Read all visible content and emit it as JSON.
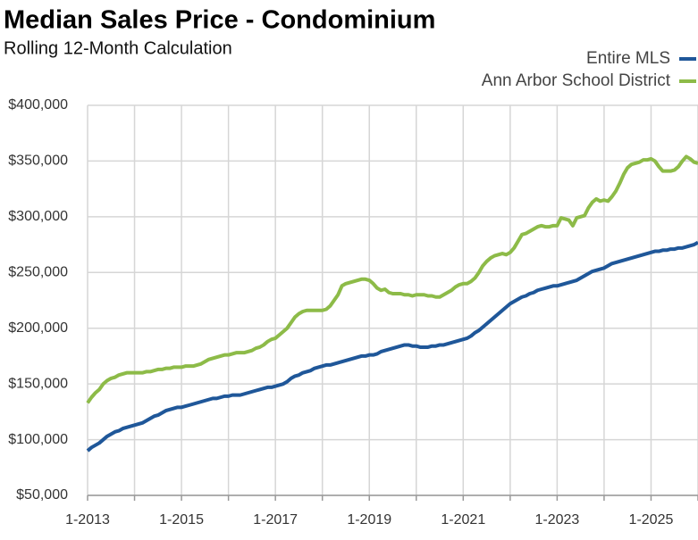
{
  "chart_data": {
    "type": "line",
    "title": "Median Sales Price - Condominium",
    "subtitle": "Rolling 12-Month Calculation",
    "categories": [
      "1-2013",
      null,
      null,
      null,
      null,
      null,
      null,
      null,
      null,
      null,
      null,
      null,
      null,
      null,
      null,
      null,
      null,
      null,
      null,
      null,
      null,
      null,
      null,
      null,
      "1-2015",
      null,
      null,
      null,
      null,
      null,
      null,
      null,
      null,
      null,
      null,
      null,
      null,
      null,
      null,
      null,
      null,
      null,
      null,
      null,
      null,
      null,
      null,
      null,
      "1-2017",
      null,
      null,
      null,
      null,
      null,
      null,
      null,
      null,
      null,
      null,
      null,
      null,
      null,
      null,
      null,
      null,
      null,
      null,
      null,
      null,
      null,
      null,
      null,
      "1-2019",
      null,
      null,
      null,
      null,
      null,
      null,
      null,
      null,
      null,
      null,
      null,
      null,
      null,
      null,
      null,
      null,
      null,
      null,
      null,
      null,
      null,
      null,
      null,
      "1-2021",
      null,
      null,
      null,
      null,
      null,
      null,
      null,
      null,
      null,
      null,
      null,
      null,
      null,
      null,
      null,
      null,
      null,
      null,
      null,
      null,
      null,
      null,
      null,
      "1-2023",
      null,
      null,
      null,
      null,
      null,
      null,
      null,
      null,
      null,
      null,
      null,
      null,
      null,
      null,
      null,
      null,
      null,
      null,
      null,
      null,
      null,
      null,
      null,
      "1-2025",
      null,
      null,
      null,
      null,
      null,
      null,
      null,
      null,
      null,
      null,
      null,
      null
    ],
    "series": [
      {
        "name": "Entire MLS",
        "color": "#1f5799",
        "values": [
          90000,
          93000,
          95000,
          97000,
          100000,
          103000,
          105000,
          107000,
          108000,
          110000,
          111000,
          112000,
          113000,
          114000,
          115000,
          117000,
          119000,
          121000,
          122000,
          124000,
          126000,
          127000,
          128000,
          129000,
          129000,
          130000,
          131000,
          132000,
          133000,
          134000,
          135000,
          136000,
          137000,
          137000,
          138000,
          139000,
          139000,
          140000,
          140000,
          140000,
          141000,
          142000,
          143000,
          144000,
          145000,
          146000,
          147000,
          147000,
          148000,
          149000,
          150000,
          152000,
          155000,
          157000,
          158000,
          160000,
          161000,
          162000,
          164000,
          165000,
          166000,
          167000,
          167000,
          168000,
          169000,
          170000,
          171000,
          172000,
          173000,
          174000,
          175000,
          175000,
          176000,
          176000,
          177000,
          179000,
          180000,
          181000,
          182000,
          183000,
          184000,
          185000,
          185000,
          184000,
          184000,
          183000,
          183000,
          183000,
          184000,
          184000,
          185000,
          185000,
          186000,
          187000,
          188000,
          189000,
          190000,
          191000,
          193000,
          196000,
          198000,
          201000,
          204000,
          207000,
          210000,
          213000,
          216000,
          219000,
          222000,
          224000,
          226000,
          228000,
          229000,
          231000,
          232000,
          234000,
          235000,
          236000,
          237000,
          238000,
          238000,
          239000,
          240000,
          241000,
          242000,
          243000,
          245000,
          247000,
          249000,
          251000,
          252000,
          253000,
          254000,
          256000,
          258000,
          259000,
          260000,
          261000,
          262000,
          263000,
          264000,
          265000,
          266000,
          267000,
          268000,
          269000,
          269000,
          270000,
          270000,
          271000,
          271000,
          272000,
          272000,
          273000,
          274000,
          275000,
          277000
        ]
      },
      {
        "name": "Ann Arbor School District",
        "color": "#8dbb48",
        "values": [
          133000,
          138000,
          142000,
          145000,
          150000,
          153000,
          155000,
          156000,
          158000,
          159000,
          160000,
          160000,
          160000,
          160000,
          160000,
          161000,
          161000,
          162000,
          163000,
          163000,
          164000,
          164000,
          165000,
          165000,
          165000,
          166000,
          166000,
          166000,
          167000,
          168000,
          170000,
          172000,
          173000,
          174000,
          175000,
          176000,
          176000,
          177000,
          178000,
          178000,
          178000,
          179000,
          180000,
          182000,
          183000,
          185000,
          188000,
          190000,
          191000,
          194000,
          197000,
          200000,
          205000,
          210000,
          213000,
          215000,
          216000,
          216000,
          216000,
          216000,
          216000,
          217000,
          220000,
          225000,
          230000,
          238000,
          240000,
          241000,
          242000,
          243000,
          244000,
          244000,
          243000,
          240000,
          236000,
          234000,
          235000,
          232000,
          231000,
          231000,
          231000,
          230000,
          230000,
          229000,
          230000,
          230000,
          230000,
          229000,
          229000,
          228000,
          228000,
          230000,
          232000,
          234000,
          237000,
          239000,
          240000,
          240000,
          242000,
          245000,
          250000,
          256000,
          260000,
          263000,
          265000,
          266000,
          267000,
          266000,
          268000,
          272000,
          278000,
          284000,
          285000,
          287000,
          289000,
          291000,
          292000,
          291000,
          291000,
          292000,
          292000,
          299000,
          298000,
          297000,
          292000,
          299000,
          300000,
          301000,
          308000,
          313000,
          316000,
          314000,
          315000,
          314000,
          318000,
          323000,
          330000,
          338000,
          344000,
          347000,
          348000,
          349000,
          351000,
          351000,
          352000,
          350000,
          345000,
          341000,
          341000,
          341000,
          342000,
          345000,
          350000,
          354000,
          352000,
          349000,
          348000
        ]
      }
    ],
    "ylim": [
      50000,
      400000
    ],
    "yticks": [
      {
        "value": 50000,
        "label": "$50,000"
      },
      {
        "value": 100000,
        "label": "$100,000"
      },
      {
        "value": 150000,
        "label": "$150,000"
      },
      {
        "value": 200000,
        "label": "$200,000"
      },
      {
        "value": 250000,
        "label": "$250,000"
      },
      {
        "value": 300000,
        "label": "$300,000"
      },
      {
        "value": 350000,
        "label": "$350,000"
      },
      {
        "value": 400000,
        "label": "$400,000"
      }
    ],
    "grid": true,
    "legend": "top-right"
  }
}
